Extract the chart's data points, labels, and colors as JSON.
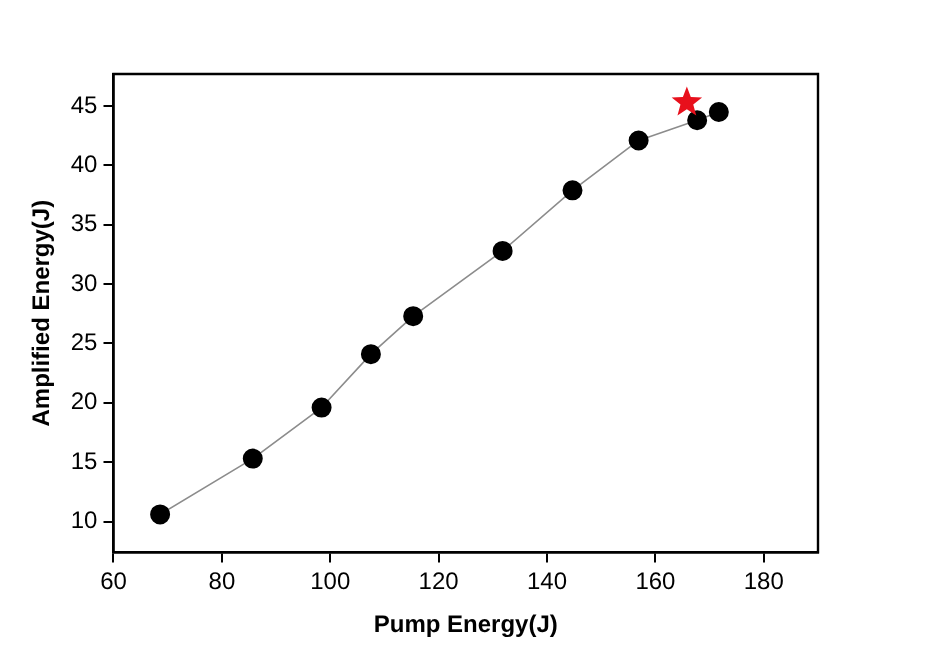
{
  "chart_data": {
    "type": "line",
    "xlabel": "Pump Energy(J)",
    "ylabel": "Amplified Energy(J)",
    "xlim": [
      60,
      190
    ],
    "xticks": [
      60,
      80,
      100,
      120,
      140,
      160,
      180
    ],
    "ylim": [
      7.4,
      47.7
    ],
    "yticks": [
      10,
      15,
      20,
      25,
      30,
      35,
      40,
      45
    ],
    "grid": false,
    "legend": false,
    "series": [
      {
        "type": "line",
        "color": "#000000",
        "marker": "circle",
        "line_style": "solid",
        "x": [
          68.6,
          85.7,
          98.4,
          107.5,
          115.3,
          131.8,
          144.7,
          156.9,
          167.7,
          171.7
        ],
        "values": [
          10.6,
          15.3,
          19.6,
          24.1,
          27.3,
          32.8,
          37.9,
          42.1,
          43.8,
          44.5
        ]
      },
      {
        "type": "scatter",
        "color": "#e8101c",
        "marker": "star",
        "x": [
          165.8
        ],
        "values": [
          45.3
        ]
      }
    ]
  }
}
